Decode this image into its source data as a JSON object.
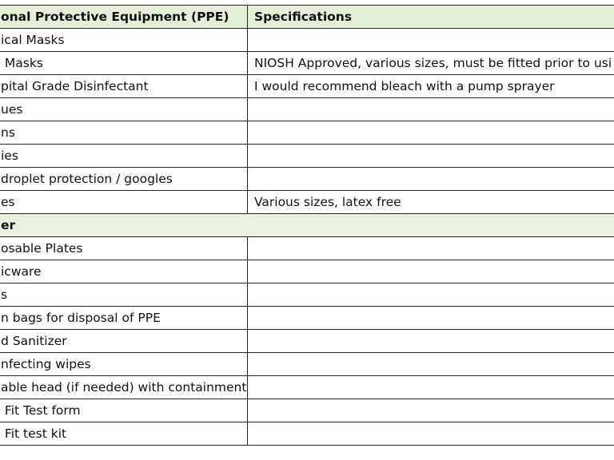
{
  "table": {
    "headers": [
      "onal Protective Equipment (PPE)",
      "Specifications"
    ],
    "rows": [
      {
        "item": "ical Masks",
        "spec": ""
      },
      {
        "item": " Masks",
        "spec": "NIOSH Approved, various sizes, must be fitted prior to usi"
      },
      {
        "item": "pital Grade Disinfectant",
        "spec": "I would recommend bleach with a pump sprayer"
      },
      {
        "item": "ues",
        "spec": ""
      },
      {
        "item": "ns",
        "spec": ""
      },
      {
        "item": "ies",
        "spec": ""
      },
      {
        "item": "droplet protection / googles",
        "spec": ""
      },
      {
        "item": "es",
        "spec": "Various sizes, latex free"
      }
    ],
    "section": "er",
    "rows2": [
      {
        "item": "osable Plates",
        "spec": ""
      },
      {
        "item": "icware",
        "spec": ""
      },
      {
        "item": "s",
        "spec": ""
      },
      {
        "item": "n bags for disposal of PPE",
        "spec": ""
      },
      {
        "item": "d Sanitizer",
        "spec": ""
      },
      {
        "item": "nfecting wipes",
        "spec": ""
      },
      {
        "item": "able head (if needed) with containment",
        "spec": ""
      },
      {
        "item": " Fit Test form",
        "spec": ""
      },
      {
        "item": " Fit test kit",
        "spec": ""
      }
    ]
  },
  "colors": {
    "header_bg": "#e5eed8",
    "section_bg": "#e9f0dd",
    "border": "#222222"
  }
}
